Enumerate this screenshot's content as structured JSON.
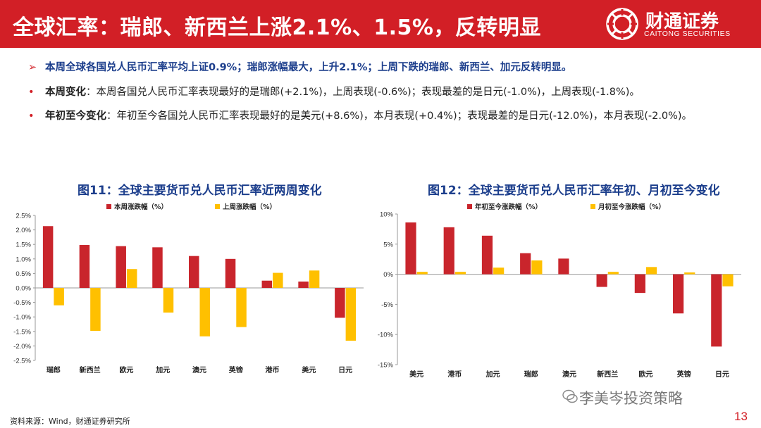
{
  "header": {
    "title": "全球汇率：瑞郎、新西兰上涨2.1%、1.5%，反转明显",
    "logo_cn": "财通证券",
    "logo_en": "CAITONG SECURITIES"
  },
  "bullets": {
    "b1_mark": "➢",
    "b1_text": "本周全球各国兑人民币汇率平均上证0.9%；瑞郎涨幅最大，上升2.1%；上周下跌的瑞郎、新西兰、加元反转明显。",
    "b2_mark": "•",
    "b2_label": "本周变化",
    "b2_text": "：本周各国兑人民币汇率表现最好的是瑞郎(+2.1%)，上周表现(-0.6%)；表现最差的是日元(-1.0%)，上周表现(-1.8%)。",
    "b3_mark": "•",
    "b3_label": "年初至今变化",
    "b3_text": "：年初至今各国兑人民币汇率表现最好的是美元(+8.6%)，本月表现(+0.4%)；表现最差的是日元(-12.0%)，本月表现(-2.0%)。"
  },
  "colors": {
    "red": "#c9252c",
    "yellow": "#ffc000",
    "brand": "#d21f26",
    "title_blue": "#1c3e8c"
  },
  "chart_data": [
    {
      "type": "bar",
      "title": "图11：全球主要货币兑人民币汇率近两周变化",
      "categories": [
        "瑞郎",
        "新西兰",
        "欧元",
        "加元",
        "澳元",
        "英镑",
        "港币",
        "美元",
        "日元"
      ],
      "series": [
        {
          "name": "本周涨跌幅（%）",
          "values": [
            2.13,
            1.48,
            1.44,
            1.4,
            1.1,
            1.0,
            0.25,
            0.22,
            -1.03
          ]
        },
        {
          "name": "上周涨跌幅（%）",
          "values": [
            -0.6,
            -1.48,
            0.65,
            -0.85,
            -1.67,
            -1.35,
            0.52,
            0.6,
            -1.82
          ]
        }
      ],
      "yticks": [
        "2.5%",
        "2.0%",
        "1.5%",
        "1.0%",
        "0.5%",
        "0.0%",
        "-0.5%",
        "-1.0%",
        "-1.5%",
        "-2.0%",
        "-2.5%"
      ],
      "ylim": [
        -2.5,
        2.5
      ],
      "legend": "top",
      "colors": [
        "#c9252c",
        "#ffc000"
      ]
    },
    {
      "type": "bar",
      "title": "图12：全球主要货币兑人民币汇率年初、月初至今变化",
      "categories": [
        "美元",
        "港币",
        "加元",
        "瑞郎",
        "澳元",
        "新西兰",
        "欧元",
        "英镑",
        "日元"
      ],
      "series": [
        {
          "name": "年初至今涨跌幅（%）",
          "values": [
            8.6,
            7.8,
            6.4,
            3.5,
            2.6,
            -2.1,
            -3.1,
            -6.5,
            -12.0
          ]
        },
        {
          "name": "月初至今涨跌幅（%）",
          "values": [
            0.4,
            0.4,
            1.1,
            2.3,
            0.0,
            0.4,
            1.2,
            0.3,
            -2.0
          ]
        }
      ],
      "yticks": [
        "10%",
        "5%",
        "0%",
        "-5%",
        "-10%",
        "-15%"
      ],
      "ylim": [
        -15,
        10
      ],
      "legend": "top",
      "colors": [
        "#c9252c",
        "#ffc000"
      ]
    }
  ],
  "footer": {
    "source": "资料来源：Wind，财通证券研究所",
    "watermark": "李美岑投资策略",
    "page": "13"
  }
}
